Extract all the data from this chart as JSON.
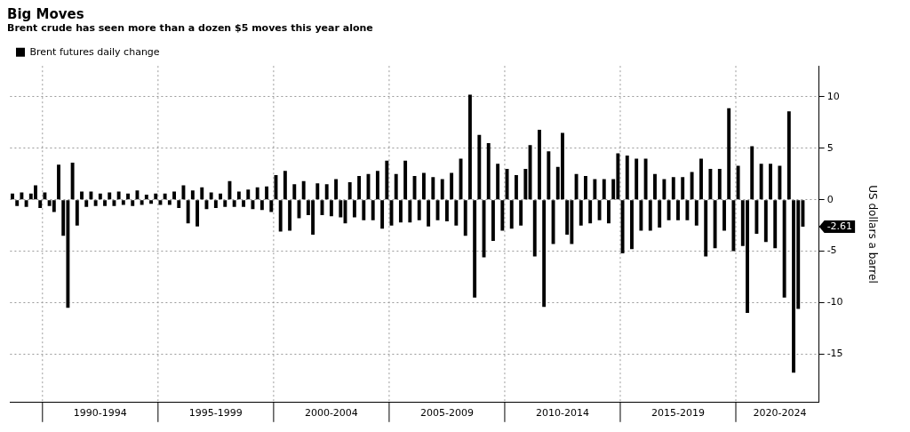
{
  "chart_data": {
    "type": "bar",
    "title": "Big Moves",
    "subtitle": "Brent crude has seen more than a dozen $5 moves this year alone",
    "ylabel": "US dollars a barrel",
    "categories": [
      null,
      null,
      null,
      null,
      null,
      null,
      null,
      null,
      null,
      null,
      null,
      null,
      null,
      null,
      null,
      null,
      null,
      null,
      null,
      "1990-1994",
      null,
      null,
      null,
      null,
      null,
      null,
      null,
      null,
      null,
      null,
      null,
      null,
      null,
      null,
      null,
      null,
      null,
      null,
      null,
      null,
      null,
      null,
      null,
      null,
      "1995-1999",
      null,
      null,
      null,
      null,
      null,
      null,
      null,
      null,
      null,
      null,
      null,
      null,
      null,
      null,
      null,
      null,
      null,
      null,
      null,
      null,
      null,
      null,
      null,
      null,
      "2000-2004",
      null,
      null,
      null,
      null,
      null,
      null,
      null,
      null,
      null,
      null,
      null,
      null,
      null,
      null,
      null,
      null,
      null,
      null,
      null,
      null,
      null,
      null,
      null,
      null,
      "2005-2009",
      null,
      null,
      null,
      null,
      null,
      null,
      null,
      null,
      null,
      null,
      null,
      null,
      null,
      null,
      null,
      null,
      null,
      null,
      null,
      null,
      null,
      null,
      null,
      null,
      "2010-2014",
      null,
      null,
      null,
      null,
      null,
      null,
      null,
      null,
      null,
      null,
      null,
      null,
      null,
      null,
      null,
      null,
      null,
      null,
      null,
      null,
      null,
      null,
      null,
      null,
      "2015-2019",
      null,
      null,
      null,
      null,
      null,
      null,
      null,
      null,
      null,
      null,
      null,
      null,
      null,
      null,
      null,
      null,
      null,
      null,
      null,
      null,
      null,
      "2020-2024",
      null,
      null,
      null,
      null,
      null,
      null,
      null,
      null
    ],
    "series": [
      {
        "name": "Brent futures daily change",
        "color": "#000000",
        "values": [
          0.6,
          -0.6,
          0.7,
          -0.7,
          0.6,
          1.4,
          -0.8,
          0.7,
          -0.6,
          -1.2,
          3.4,
          -3.5,
          -10.5,
          3.6,
          -2.5,
          0.8,
          -0.7,
          0.8,
          -0.6,
          0.6,
          -0.6,
          0.7,
          -0.6,
          0.8,
          -0.5,
          0.6,
          -0.6,
          0.9,
          -0.5,
          0.5,
          -0.4,
          0.6,
          -0.5,
          0.6,
          -0.5,
          0.8,
          -0.8,
          1.4,
          -2.3,
          0.9,
          -2.6,
          1.2,
          -0.9,
          0.7,
          -0.8,
          0.6,
          -0.7,
          1.8,
          -0.7,
          0.8,
          -0.7,
          1.0,
          -0.9,
          1.2,
          -1.0,
          1.3,
          -1.2,
          2.4,
          -3.1,
          2.8,
          -3.0,
          1.5,
          -1.8,
          1.8,
          -1.5,
          -3.4,
          1.6,
          -1.5,
          1.5,
          -1.6,
          2.0,
          -1.7,
          -2.3,
          1.7,
          -1.7,
          2.3,
          -2.0,
          2.5,
          -2.0,
          2.8,
          -2.8,
          3.8,
          -2.5,
          2.5,
          -2.2,
          3.8,
          -2.2,
          2.3,
          -2.0,
          2.6,
          -2.6,
          2.2,
          -2.0,
          2.0,
          -2.1,
          2.6,
          -2.5,
          4.0,
          -3.5,
          10.2,
          -9.5,
          6.3,
          -5.6,
          5.5,
          -4.0,
          3.5,
          -3.0,
          3.0,
          -2.8,
          2.4,
          -2.5,
          3.0,
          5.3,
          -5.5,
          6.8,
          -10.4,
          4.7,
          -4.3,
          3.2,
          6.5,
          -3.4,
          -4.3,
          2.5,
          -2.5,
          2.3,
          -2.3,
          2.0,
          -2.0,
          2.0,
          -2.3,
          2.0,
          4.5,
          -5.2,
          4.3,
          -4.8,
          4.0,
          -3.0,
          4.0,
          -3.0,
          2.5,
          -2.7,
          2.0,
          -2.0,
          2.2,
          -2.0,
          2.2,
          -2.0,
          2.7,
          -2.5,
          4.0,
          -5.5,
          3.0,
          -4.7,
          3.0,
          -3.0,
          8.9,
          -5.0,
          3.3,
          -4.5,
          -11.0,
          5.2,
          -3.3,
          3.5,
          -4.1,
          3.5,
          -4.7,
          3.3,
          -9.5,
          8.6,
          -16.8,
          -10.6,
          -2.61,
          null,
          null,
          null
        ]
      }
    ],
    "ylim": [
      -19.7,
      13
    ],
    "yticks": [
      -15,
      -10,
      -5,
      0,
      5,
      10
    ],
    "grid": true,
    "legend": "top left",
    "annotations": [
      "-2.61"
    ]
  }
}
